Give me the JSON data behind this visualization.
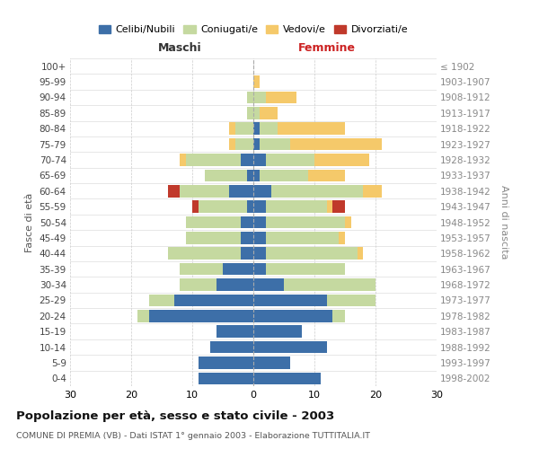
{
  "age_groups_bottom_to_top": [
    "0-4",
    "5-9",
    "10-14",
    "15-19",
    "20-24",
    "25-29",
    "30-34",
    "35-39",
    "40-44",
    "45-49",
    "50-54",
    "55-59",
    "60-64",
    "65-69",
    "70-74",
    "75-79",
    "80-84",
    "85-89",
    "90-94",
    "95-99",
    "100+"
  ],
  "birth_years_bottom_to_top": [
    "1998-2002",
    "1993-1997",
    "1988-1992",
    "1983-1987",
    "1978-1982",
    "1973-1977",
    "1968-1972",
    "1963-1967",
    "1958-1962",
    "1953-1957",
    "1948-1952",
    "1943-1947",
    "1938-1942",
    "1933-1937",
    "1928-1932",
    "1923-1927",
    "1918-1922",
    "1913-1917",
    "1908-1912",
    "1903-1907",
    "≤ 1902"
  ],
  "colors": {
    "celibi": "#3d6fa8",
    "coniugati": "#c5d9a0",
    "vedovi": "#f5c96a",
    "divorziati": "#c0392b"
  },
  "male_bottom_to_top": {
    "celibi": [
      9,
      9,
      7,
      6,
      17,
      13,
      6,
      5,
      2,
      2,
      2,
      1,
      4,
      1,
      2,
      0,
      0,
      0,
      0,
      0,
      0
    ],
    "coniugati": [
      0,
      0,
      0,
      0,
      2,
      4,
      6,
      7,
      12,
      9,
      9,
      8,
      8,
      7,
      9,
      3,
      3,
      1,
      1,
      0,
      0
    ],
    "vedovi": [
      0,
      0,
      0,
      0,
      0,
      0,
      0,
      0,
      0,
      0,
      0,
      0,
      0,
      0,
      1,
      1,
      1,
      0,
      0,
      0,
      0
    ],
    "divorziati": [
      0,
      0,
      0,
      0,
      0,
      0,
      0,
      0,
      0,
      0,
      0,
      1,
      2,
      0,
      0,
      0,
      0,
      0,
      0,
      0,
      0
    ]
  },
  "female_bottom_to_top": {
    "celibi": [
      11,
      6,
      12,
      8,
      13,
      12,
      5,
      2,
      2,
      2,
      2,
      2,
      3,
      1,
      2,
      1,
      1,
      0,
      0,
      0,
      0
    ],
    "coniugati": [
      0,
      0,
      0,
      0,
      2,
      8,
      15,
      13,
      15,
      12,
      13,
      10,
      15,
      8,
      8,
      5,
      3,
      1,
      2,
      0,
      0
    ],
    "vedovi": [
      0,
      0,
      0,
      0,
      0,
      0,
      0,
      0,
      1,
      1,
      1,
      1,
      3,
      6,
      9,
      15,
      11,
      3,
      5,
      1,
      0
    ],
    "divorziati": [
      0,
      0,
      0,
      0,
      0,
      0,
      0,
      0,
      0,
      0,
      0,
      2,
      0,
      0,
      0,
      0,
      0,
      0,
      0,
      0,
      0
    ]
  },
  "xlim": 30,
  "title": "Popolazione per età, sesso e stato civile - 2003",
  "subtitle": "COMUNE DI PREMIA (VB) - Dati ISTAT 1° gennaio 2003 - Elaborazione TUTTITALIA.IT",
  "ylabel_left": "Fasce di età",
  "ylabel_right": "Anni di nascita",
  "xlabel_left": "Maschi",
  "xlabel_right": "Femmine",
  "legend_labels": [
    "Celibi/Nubili",
    "Coniugati/e",
    "Vedovi/e",
    "Divorziati/e"
  ],
  "bg_color": "#ffffff",
  "grid_color": "#cccccc"
}
